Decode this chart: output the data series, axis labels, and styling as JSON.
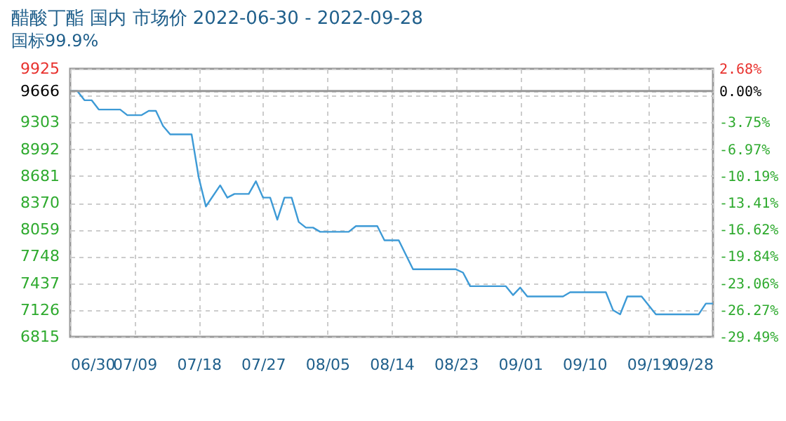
{
  "chart_data": {
    "type": "line",
    "title": "醋酸丁酯 国内 市场价 2022-06-30 - 2022-09-28",
    "subtitle": "国标99.9%",
    "x": [
      "2022-06-30",
      "2022-07-01",
      "2022-07-02",
      "2022-07-03",
      "2022-07-04",
      "2022-07-07",
      "2022-07-08",
      "2022-07-10",
      "2022-07-11",
      "2022-07-12",
      "2022-07-13",
      "2022-07-14",
      "2022-07-17",
      "2022-07-18",
      "2022-07-19",
      "2022-07-21",
      "2022-07-22",
      "2022-07-23",
      "2022-07-25",
      "2022-07-26",
      "2022-07-27",
      "2022-07-28",
      "2022-07-29",
      "2022-07-30",
      "2022-07-31",
      "2022-08-01",
      "2022-08-02",
      "2022-08-03",
      "2022-08-04",
      "2022-08-08",
      "2022-08-09",
      "2022-08-12",
      "2022-08-13",
      "2022-08-15",
      "2022-08-17",
      "2022-08-23",
      "2022-08-24",
      "2022-08-25",
      "2022-08-30",
      "2022-08-31",
      "2022-09-01",
      "2022-09-02",
      "2022-09-07",
      "2022-09-08",
      "2022-09-13",
      "2022-09-14",
      "2022-09-15",
      "2022-09-16",
      "2022-09-18",
      "2022-09-20",
      "2022-09-26",
      "2022-09-27",
      "2022-09-28"
    ],
    "series": [
      {
        "color": "#3d9ad6",
        "values": [
          9666,
          9666,
          9560,
          9560,
          9452,
          9452,
          9387,
          9387,
          9436,
          9436,
          9262,
          9164,
          9164,
          8663,
          8327,
          8572,
          8430,
          8473,
          8473,
          8620,
          8430,
          8430,
          8174,
          8430,
          8430,
          8147,
          8082,
          8082,
          8033,
          8033,
          8099,
          8099,
          7935,
          7935,
          7598,
          7598,
          7560,
          7402,
          7402,
          7299,
          7386,
          7283,
          7283,
          7332,
          7332,
          7125,
          7076,
          7283,
          7283,
          7076,
          7076,
          7201,
          7201
        ]
      }
    ],
    "xlim": [
      "2022-06-30",
      "2022-09-28"
    ],
    "xticks": [
      {
        "value": "2022-06-30",
        "label": "06/30"
      },
      {
        "value": "2022-07-09",
        "label": "07/09"
      },
      {
        "value": "2022-07-18",
        "label": "07/18"
      },
      {
        "value": "2022-07-27",
        "label": "07/27"
      },
      {
        "value": "2022-08-05",
        "label": "08/05"
      },
      {
        "value": "2022-08-14",
        "label": "08/14"
      },
      {
        "value": "2022-08-23",
        "label": "08/23"
      },
      {
        "value": "2022-09-01",
        "label": "09/01"
      },
      {
        "value": "2022-09-10",
        "label": "09/10"
      },
      {
        "value": "2022-09-19",
        "label": "09/19"
      },
      {
        "value": "2022-09-28",
        "label": "09/28"
      }
    ],
    "ylim": [
      6815,
      9925
    ],
    "yticks": [
      6815,
      7126,
      7437,
      7748,
      8059,
      8370,
      8681,
      8992,
      9303,
      {
        "value": 9614,
        "label": null
      },
      9666,
      9925
    ],
    "y2lim": [
      -29.49,
      2.68
    ],
    "y2ticks": [
      {
        "value": -29.49,
        "label": "-29.49%"
      },
      {
        "value": -26.27,
        "label": "-26.27%"
      },
      {
        "value": -23.06,
        "label": "-23.06%"
      },
      {
        "value": -19.84,
        "label": "-19.84%"
      },
      {
        "value": -16.62,
        "label": "-16.62%"
      },
      {
        "value": -13.41,
        "label": "-13.41%"
      },
      {
        "value": -10.19,
        "label": "-10.19%"
      },
      {
        "value": -6.97,
        "label": "-6.97%"
      },
      {
        "value": -3.75,
        "label": "-3.75%"
      },
      {
        "value": 0,
        "label": "0.00%"
      },
      {
        "value": 2.68,
        "label": "2.68%"
      }
    ],
    "ref_lines": [
      {
        "axis": "y2",
        "value": 0,
        "color": "#999999"
      }
    ],
    "grid": true
  }
}
